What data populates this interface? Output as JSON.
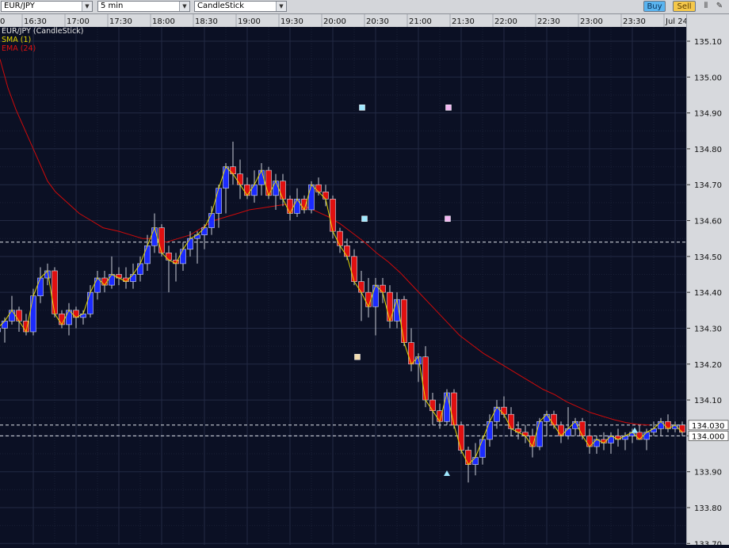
{
  "toolbar": {
    "symbol": "EUR/JPY",
    "timeframe": "5 min",
    "chart_style": "CandleStick",
    "buy_label": "Buy",
    "sell_label": "Sell"
  },
  "legend": {
    "instrument": "EUR/JPY (CandleStick)",
    "sma": "SMA (1)",
    "ema": "EMA (24)"
  },
  "colors": {
    "background": "#0b1024",
    "grid": "#1c2236",
    "bull_candle": "#1b2bff",
    "bear_candle": "#e01010",
    "sma_line": "#e6d800",
    "ema_line": "#d00a0a",
    "buy_button": "#5ab4ef",
    "sell_button": "#f5c84a"
  },
  "chart_data": {
    "type": "candlestick",
    "title": "EUR/JPY (CandleStick)",
    "time_labels": [
      "16:30",
      "17:00",
      "17:30",
      "18:00",
      "18:30",
      "19:00",
      "19:30",
      "20:00",
      "20:30",
      "21:00",
      "21:30",
      "22:00",
      "22:30",
      "23:00",
      "23:30",
      "Jul 24"
    ],
    "time_labels_partial_left": "0",
    "price_ticks": [
      "135.10",
      "135.00",
      "134.90",
      "134.80",
      "134.70",
      "134.60",
      "134.50",
      "134.40",
      "134.30",
      "134.20",
      "134.10",
      "134.00",
      "133.90",
      "133.80",
      "133.70"
    ],
    "ylim": [
      133.675,
      135.145
    ],
    "price_labels_boxed": [
      "134.030",
      "134.000"
    ],
    "horizontal_lines": [
      134.54,
      134.03,
      134.0
    ],
    "candle_step_minutes": 5,
    "first_candle_time": "15:55",
    "ohlc": [
      [
        134.7,
        134.71,
        134.63,
        134.63
      ],
      [
        134.63,
        134.64,
        134.28,
        134.29
      ],
      [
        134.29,
        134.33,
        134.27,
        134.3
      ],
      [
        134.3,
        134.33,
        134.26,
        134.32
      ],
      [
        134.32,
        134.39,
        134.31,
        134.35
      ],
      [
        134.35,
        134.36,
        134.29,
        134.32
      ],
      [
        134.32,
        134.34,
        134.28,
        134.29
      ],
      [
        134.29,
        134.41,
        134.28,
        134.39
      ],
      [
        134.39,
        134.47,
        134.37,
        134.44
      ],
      [
        134.44,
        134.48,
        134.42,
        134.46
      ],
      [
        134.46,
        134.47,
        134.33,
        134.34
      ],
      [
        134.34,
        134.35,
        134.3,
        134.31
      ],
      [
        134.31,
        134.37,
        134.28,
        134.35
      ],
      [
        134.35,
        134.36,
        134.3,
        134.33
      ],
      [
        134.33,
        134.35,
        134.31,
        134.34
      ],
      [
        134.34,
        134.42,
        134.33,
        134.4
      ],
      [
        134.4,
        134.46,
        134.38,
        134.44
      ],
      [
        134.44,
        134.46,
        134.4,
        134.42
      ],
      [
        134.42,
        134.5,
        134.41,
        134.45
      ],
      [
        134.45,
        134.47,
        134.42,
        134.44
      ],
      [
        134.44,
        134.47,
        134.41,
        134.43
      ],
      [
        134.43,
        134.48,
        134.41,
        134.45
      ],
      [
        134.45,
        134.5,
        134.43,
        134.48
      ],
      [
        134.48,
        134.56,
        134.46,
        134.53
      ],
      [
        134.53,
        134.62,
        134.51,
        134.58
      ],
      [
        134.58,
        134.59,
        134.5,
        134.51
      ],
      [
        134.51,
        134.53,
        134.4,
        134.49
      ],
      [
        134.49,
        134.51,
        134.43,
        134.48
      ],
      [
        134.48,
        134.54,
        134.46,
        134.52
      ],
      [
        134.52,
        134.57,
        134.5,
        134.55
      ],
      [
        134.55,
        134.57,
        134.48,
        134.56
      ],
      [
        134.56,
        134.59,
        134.52,
        134.58
      ],
      [
        134.58,
        134.64,
        134.56,
        134.62
      ],
      [
        134.62,
        134.7,
        134.58,
        134.69
      ],
      [
        134.69,
        134.76,
        134.62,
        134.75
      ],
      [
        134.75,
        134.82,
        134.7,
        134.73
      ],
      [
        134.73,
        134.77,
        134.66,
        134.7
      ],
      [
        134.7,
        134.72,
        134.66,
        134.67
      ],
      [
        134.67,
        134.74,
        134.65,
        134.7
      ],
      [
        134.7,
        134.76,
        134.67,
        134.74
      ],
      [
        134.74,
        134.75,
        134.66,
        134.67
      ],
      [
        134.67,
        134.73,
        134.63,
        134.71
      ],
      [
        134.71,
        134.73,
        134.64,
        134.66
      ],
      [
        134.66,
        134.67,
        134.6,
        134.62
      ],
      [
        134.62,
        134.69,
        134.61,
        134.66
      ],
      [
        134.66,
        134.67,
        134.62,
        134.63
      ],
      [
        134.63,
        134.71,
        134.62,
        134.7
      ],
      [
        134.7,
        134.72,
        134.67,
        134.68
      ],
      [
        134.68,
        134.7,
        134.64,
        134.66
      ],
      [
        134.66,
        134.67,
        134.55,
        134.57
      ],
      [
        134.57,
        134.58,
        134.51,
        134.53
      ],
      [
        134.53,
        134.55,
        134.49,
        134.5
      ],
      [
        134.5,
        134.52,
        134.42,
        134.43
      ],
      [
        134.43,
        134.46,
        134.32,
        134.4
      ],
      [
        134.4,
        134.44,
        134.33,
        134.36
      ],
      [
        134.36,
        134.44,
        134.28,
        134.42
      ],
      [
        134.42,
        134.44,
        134.37,
        134.4
      ],
      [
        134.4,
        134.42,
        134.3,
        134.32
      ],
      [
        134.32,
        134.4,
        134.3,
        134.38
      ],
      [
        134.38,
        134.39,
        134.25,
        134.26
      ],
      [
        134.26,
        134.3,
        134.18,
        134.2
      ],
      [
        134.2,
        134.23,
        134.15,
        134.22
      ],
      [
        134.22,
        134.25,
        134.08,
        134.1
      ],
      [
        134.1,
        134.12,
        134.03,
        134.07
      ],
      [
        134.07,
        134.09,
        134.02,
        134.04
      ],
      [
        134.04,
        134.13,
        134.03,
        134.12
      ],
      [
        134.12,
        134.13,
        134.02,
        134.03
      ],
      [
        134.03,
        134.04,
        133.95,
        133.96
      ],
      [
        133.96,
        133.97,
        133.87,
        133.92
      ],
      [
        133.92,
        133.98,
        133.89,
        133.94
      ],
      [
        133.94,
        134.0,
        133.92,
        133.99
      ],
      [
        133.99,
        134.06,
        133.97,
        134.04
      ],
      [
        134.04,
        134.1,
        134.02,
        134.08
      ],
      [
        134.08,
        134.11,
        134.05,
        134.06
      ],
      [
        134.06,
        134.08,
        134.0,
        134.02
      ],
      [
        134.02,
        134.04,
        133.99,
        134.01
      ],
      [
        134.01,
        134.03,
        133.98,
        134.0
      ],
      [
        134.0,
        134.02,
        133.94,
        133.97
      ],
      [
        133.97,
        134.05,
        133.96,
        134.04
      ],
      [
        134.04,
        134.07,
        134.0,
        134.06
      ],
      [
        134.06,
        134.07,
        134.02,
        134.03
      ],
      [
        134.03,
        134.04,
        133.98,
        134.0
      ],
      [
        134.0,
        134.08,
        133.99,
        134.02
      ],
      [
        134.02,
        134.05,
        134.0,
        134.04
      ],
      [
        134.04,
        134.05,
        133.99,
        134.0
      ],
      [
        134.0,
        134.02,
        133.95,
        133.97
      ],
      [
        133.97,
        134.0,
        133.95,
        133.99
      ],
      [
        133.99,
        134.01,
        133.96,
        133.98
      ],
      [
        133.98,
        134.01,
        133.95,
        134.0
      ],
      [
        134.0,
        134.02,
        133.97,
        133.99
      ],
      [
        133.99,
        134.01,
        133.96,
        134.0
      ],
      [
        134.0,
        134.02,
        133.98,
        134.01
      ],
      [
        134.01,
        134.03,
        133.99,
        133.99
      ],
      [
        133.99,
        134.02,
        133.96,
        134.01
      ],
      [
        134.01,
        134.04,
        134.0,
        134.02
      ],
      [
        134.02,
        134.05,
        134.0,
        134.04
      ],
      [
        134.04,
        134.06,
        134.01,
        134.02
      ],
      [
        134.02,
        134.04,
        134.01,
        134.03
      ],
      [
        134.03,
        134.04,
        134.0,
        134.01
      ]
    ],
    "ema_24": [
      [
        0,
        135.05
      ],
      [
        10,
        134.97
      ],
      [
        20,
        134.91
      ],
      [
        30,
        134.86
      ],
      [
        40,
        134.81
      ],
      [
        50,
        134.76
      ],
      [
        60,
        134.71
      ],
      [
        70,
        134.68
      ],
      [
        80,
        134.66
      ],
      [
        90,
        134.64
      ],
      [
        100,
        134.62
      ],
      [
        115,
        134.6
      ],
      [
        130,
        134.58
      ],
      [
        150,
        134.57
      ],
      [
        165,
        134.56
      ],
      [
        180,
        134.55
      ],
      [
        195,
        134.55
      ],
      [
        210,
        134.54
      ],
      [
        225,
        134.55
      ],
      [
        240,
        134.56
      ],
      [
        255,
        134.58
      ],
      [
        270,
        134.6
      ],
      [
        285,
        134.61
      ],
      [
        300,
        134.62
      ],
      [
        315,
        134.63
      ],
      [
        330,
        134.635
      ],
      [
        345,
        134.64
      ],
      [
        360,
        134.645
      ],
      [
        375,
        134.645
      ],
      [
        385,
        134.64
      ],
      [
        400,
        134.625
      ],
      [
        415,
        134.61
      ],
      [
        430,
        134.59
      ],
      [
        445,
        134.565
      ],
      [
        460,
        134.54
      ],
      [
        475,
        134.51
      ],
      [
        490,
        134.485
      ],
      [
        505,
        134.455
      ],
      [
        520,
        134.42
      ],
      [
        535,
        134.385
      ],
      [
        550,
        134.35
      ],
      [
        565,
        134.315
      ],
      [
        580,
        134.28
      ],
      [
        595,
        134.255
      ],
      [
        610,
        134.23
      ],
      [
        625,
        134.21
      ],
      [
        640,
        134.19
      ],
      [
        655,
        134.17
      ],
      [
        670,
        134.15
      ],
      [
        685,
        134.13
      ],
      [
        700,
        134.115
      ],
      [
        715,
        134.095
      ],
      [
        730,
        134.08
      ],
      [
        745,
        134.065
      ],
      [
        760,
        134.055
      ],
      [
        775,
        134.045
      ],
      [
        790,
        134.037
      ],
      [
        805,
        134.032
      ],
      [
        820,
        134.03
      ]
    ],
    "markers": [
      {
        "type": "square",
        "time_index_x": 457,
        "price": 134.915,
        "color": "#9fe8ff"
      },
      {
        "type": "square",
        "time_index_x": 566,
        "price": 134.915,
        "color": "#f2b6f2"
      },
      {
        "type": "square",
        "time_index_x": 460,
        "price": 134.605,
        "color": "#9fe8ff"
      },
      {
        "type": "square",
        "time_index_x": 565,
        "price": 134.605,
        "color": "#f2b6f2"
      },
      {
        "type": "square",
        "time_index_x": 451,
        "price": 134.22,
        "color": "#f3dcae"
      },
      {
        "type": "triangle",
        "time_index_x": 564,
        "price": 133.895,
        "color": "#9fe8ff"
      },
      {
        "type": "triangle",
        "time_index_x": 801,
        "price": 134.015,
        "color": "#9fe8ff"
      }
    ]
  }
}
